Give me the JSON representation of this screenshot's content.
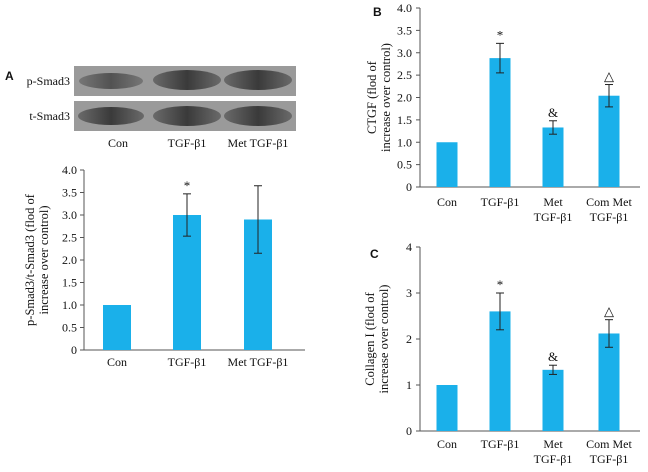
{
  "panels": {
    "a": "A",
    "b": "B",
    "c": "C"
  },
  "blot": {
    "rows": [
      "p-Smad3",
      "t-Smad3"
    ],
    "lanes": [
      "Con",
      "TGF-β1",
      "Met TGF-β1"
    ]
  },
  "chart_data": [
    {
      "id": "A",
      "type": "bar",
      "categories": [
        [
          "Con"
        ],
        [
          "TGF-β1"
        ],
        [
          "Met TGF-β1"
        ]
      ],
      "values": [
        1.0,
        3.0,
        2.9
      ],
      "errors": [
        0.0,
        0.47,
        0.75
      ],
      "markers": [
        "",
        "*",
        ""
      ],
      "ylabel": [
        "p-Smad3/t-Smad3 (flod of",
        "increase over control)"
      ],
      "ylim": [
        0,
        4.0
      ],
      "yticks": [
        "0",
        "0.5",
        "1.0",
        "1.5",
        "2.0",
        "2.5",
        "3.0",
        "3.5",
        "4.0"
      ],
      "yticks_values": [
        0,
        0.5,
        1.0,
        1.5,
        2.0,
        2.5,
        3.0,
        3.5,
        4.0
      ],
      "bar_color": "#1ab0ea"
    },
    {
      "id": "B",
      "type": "bar",
      "categories": [
        [
          "Con"
        ],
        [
          "TGF-β1"
        ],
        [
          "Met",
          "TGF-β1"
        ],
        [
          "Com Met",
          "TGF-β1"
        ]
      ],
      "values": [
        1.0,
        2.88,
        1.33,
        2.04
      ],
      "errors": [
        0.0,
        0.33,
        0.15,
        0.25
      ],
      "markers": [
        "",
        "*",
        "&",
        "△"
      ],
      "ylabel": [
        "CTGF (flod of",
        "increase over control)"
      ],
      "ylim": [
        0,
        4.0
      ],
      "yticks": [
        "0",
        "0.5",
        "1.0",
        "1.5",
        "2.0",
        "2.5",
        "3.0",
        "3.5",
        "4.0"
      ],
      "yticks_values": [
        0,
        0.5,
        1.0,
        1.5,
        2.0,
        2.5,
        3.0,
        3.5,
        4.0
      ],
      "bar_color": "#1ab0ea"
    },
    {
      "id": "C",
      "type": "bar",
      "categories": [
        [
          "Con"
        ],
        [
          "TGF-β1"
        ],
        [
          "Met",
          "TGF-β1"
        ],
        [
          "Com Met",
          "TGF-β1"
        ]
      ],
      "values": [
        1.0,
        2.6,
        1.33,
        2.12
      ],
      "errors": [
        0.0,
        0.4,
        0.1,
        0.3
      ],
      "markers": [
        "",
        "*",
        "&",
        "△"
      ],
      "ylabel": [
        "Collagen I (flod of",
        "increase over control)"
      ],
      "ylim": [
        0,
        4
      ],
      "yticks": [
        "0",
        "1",
        "2",
        "3",
        "4"
      ],
      "yticks_values": [
        0,
        1,
        2,
        3,
        4
      ],
      "bar_color": "#1ab0ea"
    }
  ]
}
